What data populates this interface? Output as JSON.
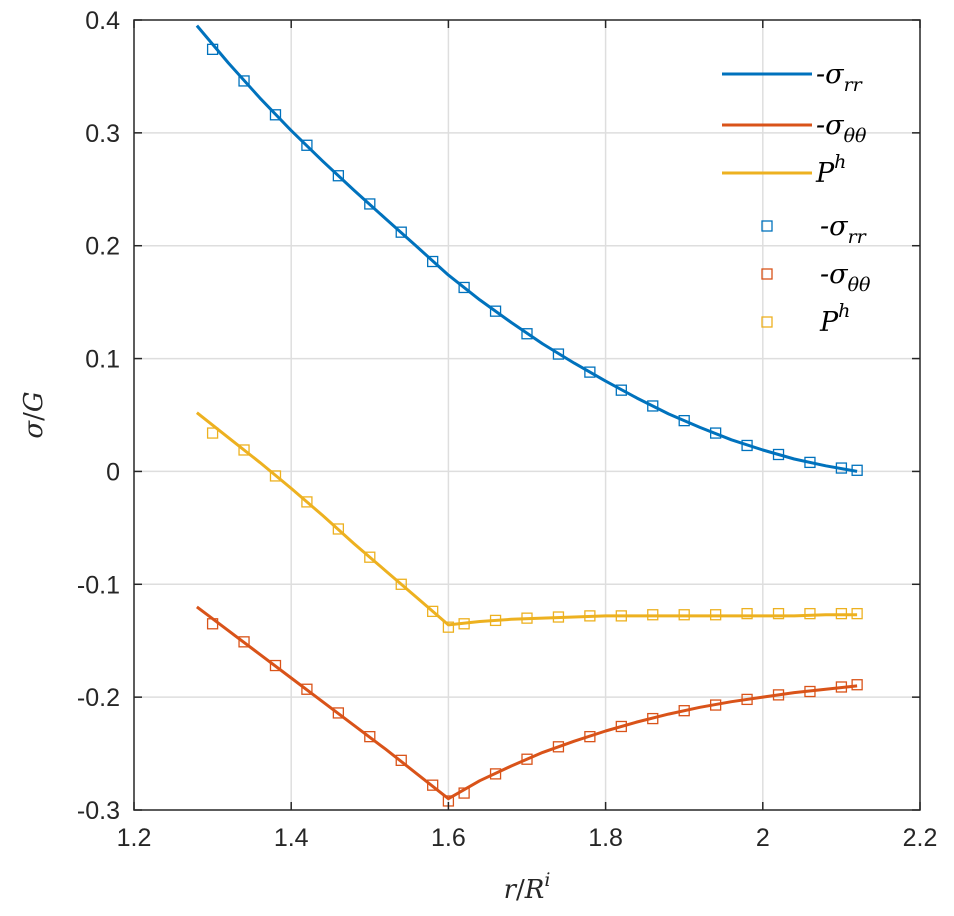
{
  "chart_data": {
    "type": "line",
    "xlabel": "r/R^i",
    "ylabel": "σ/G",
    "xlim": [
      1.2,
      2.2
    ],
    "ylim": [
      -0.3,
      0.4
    ],
    "xticks": [
      "1.2",
      "1.4",
      "1.6",
      "1.8",
      "2",
      "2.2"
    ],
    "yticks": [
      "0.4",
      "0.3",
      "0.2",
      "0.1",
      "0",
      "-0.1",
      "-0.2",
      "-0.3"
    ],
    "grid": true,
    "legend_position": "top-right",
    "series": [
      {
        "name": "-σ_rr",
        "kind": "line",
        "color": "#0072BD",
        "x": [
          1.28,
          1.32,
          1.36,
          1.4,
          1.44,
          1.48,
          1.52,
          1.56,
          1.6,
          1.64,
          1.68,
          1.72,
          1.76,
          1.8,
          1.84,
          1.88,
          1.92,
          1.96,
          2.0,
          2.04,
          2.08,
          2.12
        ],
        "y": [
          0.395,
          0.362,
          0.331,
          0.302,
          0.275,
          0.249,
          0.224,
          0.199,
          0.174,
          0.152,
          0.132,
          0.113,
          0.096,
          0.08,
          0.065,
          0.051,
          0.039,
          0.028,
          0.019,
          0.011,
          0.005,
          0.0
        ]
      },
      {
        "name": "-σ_θθ",
        "kind": "line",
        "color": "#D95319",
        "x": [
          1.28,
          1.32,
          1.36,
          1.4,
          1.44,
          1.48,
          1.52,
          1.56,
          1.6,
          1.64,
          1.68,
          1.72,
          1.76,
          1.8,
          1.84,
          1.88,
          1.92,
          1.96,
          2.0,
          2.04,
          2.08,
          2.12
        ],
        "y": [
          -0.12,
          -0.141,
          -0.162,
          -0.183,
          -0.204,
          -0.225,
          -0.246,
          -0.268,
          -0.29,
          -0.274,
          -0.261,
          -0.249,
          -0.239,
          -0.23,
          -0.222,
          -0.215,
          -0.209,
          -0.204,
          -0.2,
          -0.196,
          -0.193,
          -0.19
        ]
      },
      {
        "name": "P^h",
        "kind": "line",
        "color": "#EDB120",
        "x": [
          1.28,
          1.32,
          1.36,
          1.4,
          1.44,
          1.48,
          1.52,
          1.56,
          1.6,
          1.64,
          1.68,
          1.72,
          1.76,
          1.8,
          1.84,
          1.88,
          1.92,
          1.96,
          2.0,
          2.04,
          2.08,
          2.12
        ],
        "y": [
          0.052,
          0.03,
          0.008,
          -0.015,
          -0.039,
          -0.064,
          -0.088,
          -0.112,
          -0.136,
          -0.133,
          -0.131,
          -0.13,
          -0.129,
          -0.128,
          -0.128,
          -0.128,
          -0.128,
          -0.128,
          -0.128,
          -0.128,
          -0.127,
          -0.127
        ]
      },
      {
        "name": "-σ_rr",
        "kind": "markers",
        "marker": "square",
        "color": "#0072BD",
        "x": [
          1.3,
          1.34,
          1.38,
          1.42,
          1.46,
          1.5,
          1.54,
          1.58,
          1.62,
          1.66,
          1.7,
          1.74,
          1.78,
          1.82,
          1.86,
          1.9,
          1.94,
          1.98,
          2.02,
          2.06,
          2.1,
          2.12
        ],
        "y": [
          0.374,
          0.346,
          0.316,
          0.289,
          0.262,
          0.237,
          0.212,
          0.186,
          0.163,
          0.142,
          0.122,
          0.104,
          0.088,
          0.072,
          0.058,
          0.045,
          0.034,
          0.023,
          0.015,
          0.008,
          0.003,
          0.001
        ]
      },
      {
        "name": "-σ_θθ",
        "kind": "markers",
        "marker": "square",
        "color": "#D95319",
        "x": [
          1.3,
          1.34,
          1.38,
          1.42,
          1.46,
          1.5,
          1.54,
          1.58,
          1.6,
          1.62,
          1.66,
          1.7,
          1.74,
          1.78,
          1.82,
          1.86,
          1.9,
          1.94,
          1.98,
          2.02,
          2.06,
          2.1,
          2.12
        ],
        "y": [
          -0.135,
          -0.151,
          -0.172,
          -0.193,
          -0.214,
          -0.235,
          -0.256,
          -0.278,
          -0.292,
          -0.285,
          -0.268,
          -0.255,
          -0.244,
          -0.235,
          -0.226,
          -0.219,
          -0.212,
          -0.207,
          -0.202,
          -0.198,
          -0.195,
          -0.191,
          -0.189
        ]
      },
      {
        "name": "P^h",
        "kind": "markers",
        "marker": "square",
        "color": "#EDB120",
        "x": [
          1.3,
          1.34,
          1.38,
          1.42,
          1.46,
          1.5,
          1.54,
          1.58,
          1.6,
          1.62,
          1.66,
          1.7,
          1.74,
          1.78,
          1.82,
          1.86,
          1.9,
          1.94,
          1.98,
          2.02,
          2.06,
          2.1,
          2.12
        ],
        "y": [
          0.034,
          0.019,
          -0.004,
          -0.027,
          -0.051,
          -0.076,
          -0.1,
          -0.124,
          -0.138,
          -0.135,
          -0.132,
          -0.13,
          -0.129,
          -0.128,
          -0.128,
          -0.127,
          -0.127,
          -0.127,
          -0.126,
          -0.126,
          -0.126,
          -0.126,
          -0.126
        ]
      }
    ]
  },
  "legend": {
    "entries": [
      {
        "prefix": "-σ",
        "sub": "rr",
        "sup": "",
        "kind": "line",
        "color": "#0072BD"
      },
      {
        "prefix": "-σ",
        "sub": "θθ",
        "sup": "",
        "kind": "line",
        "color": "#D95319"
      },
      {
        "prefix": "P",
        "sub": "",
        "sup": "h",
        "kind": "line",
        "color": "#EDB120"
      },
      {
        "prefix": "-σ",
        "sub": "rr",
        "sup": "",
        "kind": "markers",
        "color": "#0072BD"
      },
      {
        "prefix": "-σ",
        "sub": "θθ",
        "sup": "",
        "kind": "markers",
        "color": "#D95319"
      },
      {
        "prefix": "P",
        "sub": "",
        "sup": "h",
        "kind": "markers",
        "color": "#EDB120"
      }
    ]
  },
  "axis_text": {
    "x_main": "r",
    "x_slash": "/",
    "x_R": "R",
    "x_sup": "i",
    "y_main": "σ",
    "y_slash": "/",
    "y_G": "G"
  }
}
